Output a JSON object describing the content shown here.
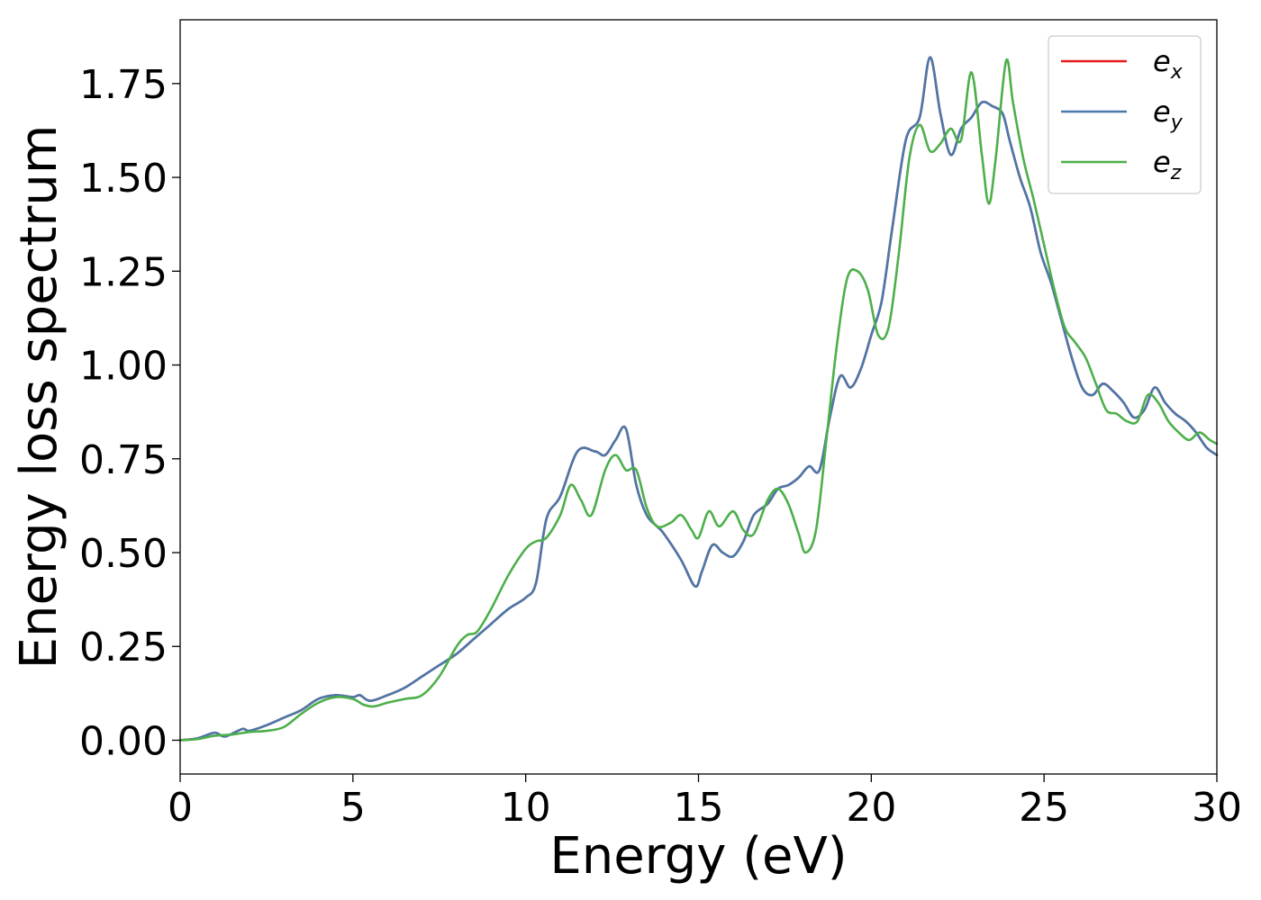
{
  "chart_data": {
    "type": "line",
    "xlabel": "Energy (eV)",
    "ylabel": "Energy loss spectrum",
    "xlim": [
      0,
      30
    ],
    "ylim": [
      -0.09,
      1.92
    ],
    "x_ticks": [
      "0",
      "5",
      "10",
      "15",
      "20",
      "25",
      "30"
    ],
    "y_ticks": [
      "0.00",
      "0.25",
      "0.50",
      "0.75",
      "1.00",
      "1.25",
      "1.50",
      "1.75"
    ],
    "grid": false,
    "legend_position": "top-right",
    "series": [
      {
        "name": "e_x",
        "label_base": "e",
        "label_sub": "x",
        "color": "#e41a1c",
        "x": [
          0,
          0.5,
          1,
          1.3,
          1.8,
          2,
          2.5,
          3,
          3.5,
          4,
          4.5,
          5,
          5.2,
          5.5,
          6,
          6.5,
          7,
          7.5,
          8,
          8.5,
          9,
          9.5,
          10,
          10.3,
          10.6,
          11,
          11.5,
          12,
          12.3,
          12.6,
          12.9,
          13.2,
          13.5,
          13.8,
          14,
          14.5,
          14.9,
          15.1,
          15.4,
          15.7,
          16,
          16.3,
          16.6,
          17,
          17.3,
          17.6,
          17.9,
          18.2,
          18.5,
          18.8,
          19.1,
          19.4,
          19.7,
          20,
          20.3,
          20.6,
          21,
          21.4,
          21.7,
          22,
          22.3,
          22.6,
          22.9,
          23.2,
          23.5,
          23.8,
          24,
          24.3,
          24.6,
          24.9,
          25.2,
          25.5,
          25.8,
          26.1,
          26.4,
          26.7,
          27,
          27.3,
          27.6,
          27.9,
          28.2,
          28.5,
          28.8,
          29.1,
          29.4,
          29.7,
          30
        ],
        "y": [
          0,
          0.005,
          0.02,
          0.01,
          0.03,
          0.025,
          0.04,
          0.06,
          0.08,
          0.11,
          0.12,
          0.115,
          0.12,
          0.105,
          0.12,
          0.14,
          0.17,
          0.2,
          0.23,
          0.27,
          0.31,
          0.35,
          0.38,
          0.42,
          0.59,
          0.65,
          0.77,
          0.77,
          0.76,
          0.8,
          0.83,
          0.68,
          0.6,
          0.57,
          0.55,
          0.48,
          0.41,
          0.45,
          0.52,
          0.5,
          0.49,
          0.53,
          0.6,
          0.63,
          0.67,
          0.68,
          0.7,
          0.73,
          0.72,
          0.86,
          0.97,
          0.94,
          0.99,
          1.08,
          1.17,
          1.36,
          1.6,
          1.66,
          1.82,
          1.67,
          1.56,
          1.63,
          1.66,
          1.7,
          1.69,
          1.67,
          1.6,
          1.5,
          1.42,
          1.3,
          1.22,
          1.12,
          1.02,
          0.94,
          0.92,
          0.95,
          0.93,
          0.9,
          0.86,
          0.88,
          0.94,
          0.9,
          0.87,
          0.85,
          0.82,
          0.78,
          0.76
        ]
      },
      {
        "name": "e_y",
        "label_base": "e",
        "label_sub": "y",
        "color": "#4a78aa",
        "x": [
          0,
          0.5,
          1,
          1.3,
          1.8,
          2,
          2.5,
          3,
          3.5,
          4,
          4.5,
          5,
          5.2,
          5.5,
          6,
          6.5,
          7,
          7.5,
          8,
          8.5,
          9,
          9.5,
          10,
          10.3,
          10.6,
          11,
          11.5,
          12,
          12.3,
          12.6,
          12.9,
          13.2,
          13.5,
          13.8,
          14,
          14.5,
          14.9,
          15.1,
          15.4,
          15.7,
          16,
          16.3,
          16.6,
          17,
          17.3,
          17.6,
          17.9,
          18.2,
          18.5,
          18.8,
          19.1,
          19.4,
          19.7,
          20,
          20.3,
          20.6,
          21,
          21.4,
          21.7,
          22,
          22.3,
          22.6,
          22.9,
          23.2,
          23.5,
          23.8,
          24,
          24.3,
          24.6,
          24.9,
          25.2,
          25.5,
          25.8,
          26.1,
          26.4,
          26.7,
          27,
          27.3,
          27.6,
          27.9,
          28.2,
          28.5,
          28.8,
          29.1,
          29.4,
          29.7,
          30
        ],
        "y": [
          0,
          0.005,
          0.02,
          0.01,
          0.03,
          0.025,
          0.04,
          0.06,
          0.08,
          0.11,
          0.12,
          0.115,
          0.12,
          0.105,
          0.12,
          0.14,
          0.17,
          0.2,
          0.23,
          0.27,
          0.31,
          0.35,
          0.38,
          0.42,
          0.59,
          0.65,
          0.77,
          0.77,
          0.76,
          0.8,
          0.83,
          0.68,
          0.6,
          0.57,
          0.55,
          0.48,
          0.41,
          0.45,
          0.52,
          0.5,
          0.49,
          0.53,
          0.6,
          0.63,
          0.67,
          0.68,
          0.7,
          0.73,
          0.72,
          0.86,
          0.97,
          0.94,
          0.99,
          1.08,
          1.17,
          1.36,
          1.6,
          1.66,
          1.82,
          1.67,
          1.56,
          1.63,
          1.66,
          1.7,
          1.69,
          1.67,
          1.6,
          1.5,
          1.42,
          1.3,
          1.22,
          1.12,
          1.02,
          0.94,
          0.92,
          0.95,
          0.93,
          0.9,
          0.86,
          0.88,
          0.94,
          0.9,
          0.87,
          0.85,
          0.82,
          0.78,
          0.76
        ]
      },
      {
        "name": "e_z",
        "label_base": "e",
        "label_sub": "z",
        "color": "#4daf4a",
        "x": [
          0,
          0.5,
          1,
          1.5,
          2,
          2.5,
          3,
          3.5,
          4,
          4.5,
          5,
          5.3,
          5.6,
          6,
          6.5,
          7,
          7.5,
          8,
          8.3,
          8.6,
          9,
          9.5,
          10,
          10.3,
          10.6,
          11,
          11.3,
          11.6,
          11.9,
          12.3,
          12.6,
          12.9,
          13.2,
          13.5,
          13.8,
          14.2,
          14.5,
          14.8,
          15,
          15.3,
          15.6,
          16,
          16.3,
          16.6,
          17,
          17.3,
          17.6,
          17.9,
          18.1,
          18.4,
          18.7,
          19,
          19.3,
          19.6,
          19.9,
          20.2,
          20.5,
          20.8,
          21.1,
          21.4,
          21.7,
          22,
          22.3,
          22.6,
          22.9,
          23.2,
          23.4,
          23.6,
          23.9,
          24.1,
          24.4,
          24.7,
          25,
          25.3,
          25.6,
          25.9,
          26.2,
          26.5,
          26.8,
          27.1,
          27.4,
          27.7,
          28,
          28.3,
          28.6,
          28.9,
          29.2,
          29.5,
          29.8,
          30
        ],
        "y": [
          0,
          0.003,
          0.012,
          0.015,
          0.022,
          0.025,
          0.035,
          0.07,
          0.1,
          0.115,
          0.11,
          0.095,
          0.09,
          0.1,
          0.11,
          0.12,
          0.17,
          0.25,
          0.28,
          0.29,
          0.35,
          0.44,
          0.51,
          0.53,
          0.54,
          0.6,
          0.68,
          0.64,
          0.6,
          0.72,
          0.76,
          0.72,
          0.72,
          0.62,
          0.57,
          0.58,
          0.6,
          0.56,
          0.54,
          0.61,
          0.57,
          0.61,
          0.56,
          0.55,
          0.64,
          0.67,
          0.63,
          0.55,
          0.5,
          0.56,
          0.8,
          1.05,
          1.23,
          1.25,
          1.2,
          1.08,
          1.1,
          1.3,
          1.55,
          1.64,
          1.57,
          1.59,
          1.63,
          1.6,
          1.78,
          1.56,
          1.43,
          1.55,
          1.81,
          1.7,
          1.55,
          1.44,
          1.32,
          1.2,
          1.1,
          1.06,
          1.02,
          0.95,
          0.88,
          0.87,
          0.85,
          0.85,
          0.92,
          0.9,
          0.85,
          0.82,
          0.8,
          0.82,
          0.8,
          0.79
        ]
      }
    ]
  }
}
